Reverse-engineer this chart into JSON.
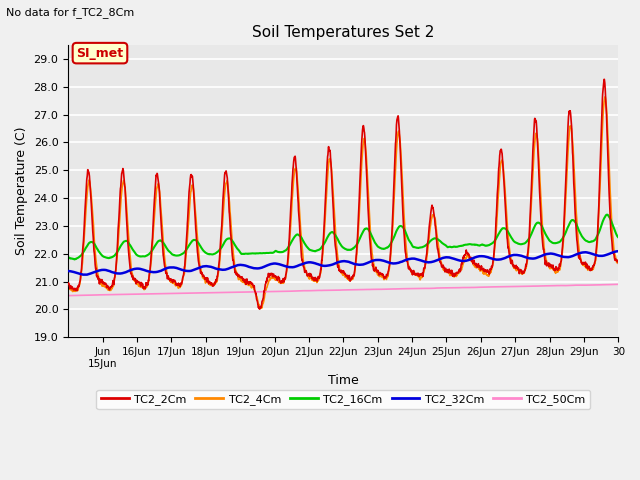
{
  "title": "Soil Temperatures Set 2",
  "xlabel": "Time",
  "ylabel": "Soil Temperature (C)",
  "note": "No data for f_TC2_8Cm",
  "legend_label": "SI_met",
  "ylim": [
    19.0,
    29.5
  ],
  "yticks": [
    19.0,
    20.0,
    21.0,
    22.0,
    23.0,
    24.0,
    25.0,
    26.0,
    27.0,
    28.0,
    29.0
  ],
  "xlim_start": 14,
  "xlim_end": 30,
  "colors": {
    "TC2_2Cm": "#dd0000",
    "TC2_4Cm": "#ff8800",
    "TC2_16Cm": "#00cc00",
    "TC2_32Cm": "#0000dd",
    "TC2_50Cm": "#ff88cc"
  },
  "bg_color": "#e8e8e8",
  "grid_color": "#ffffff",
  "legend_box_color": "#ffffcc",
  "legend_box_edge": "#cc0000",
  "fig_bg": "#f0f0f0"
}
